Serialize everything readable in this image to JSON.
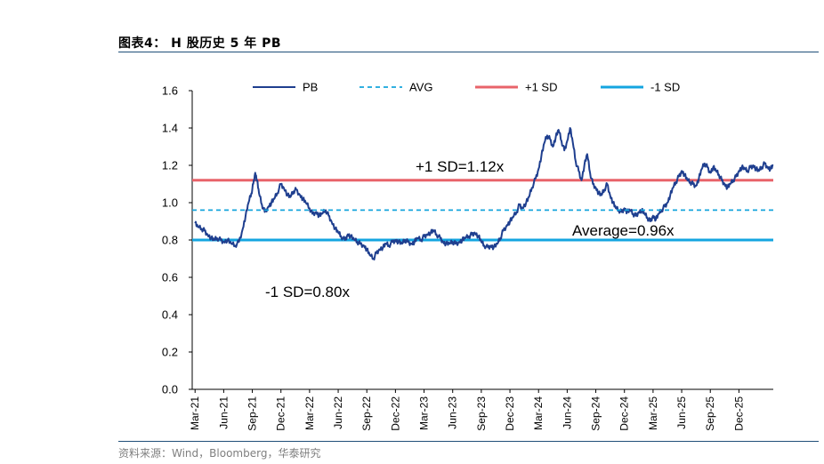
{
  "header": {
    "title": "图表4： H 股历史 5 年 PB"
  },
  "footer": {
    "source": "资料来源：Wind，Bloomberg，华泰研究"
  },
  "chart_data": {
    "type": "line",
    "ylim": [
      0,
      1.6
    ],
    "yticks": [
      "0.0",
      "0.2",
      "0.4",
      "0.6",
      "0.8",
      "1.0",
      "1.2",
      "1.4",
      "1.6"
    ],
    "xticks": [
      "Mar-21",
      "Jun-21",
      "Sep-21",
      "Dec-21",
      "Mar-22",
      "Jun-22",
      "Sep-22",
      "Dec-22",
      "Mar-23",
      "Jun-23",
      "Sep-23",
      "Dec-23",
      "Mar-24",
      "Jun-24",
      "Sep-24",
      "Dec-24",
      "Mar-25",
      "Jun-25",
      "Sep-25",
      "Dec-25"
    ],
    "xtick_months": [
      0,
      3,
      6,
      9,
      12,
      15,
      18,
      21,
      24,
      27,
      30,
      33,
      36,
      39,
      42,
      45,
      48,
      51,
      54,
      57
    ],
    "x_span_months": [
      -0.3,
      60.6
    ],
    "legend": [
      {
        "label": "PB",
        "color": "#1f3f8f",
        "style": "solid"
      },
      {
        "label": "AVG",
        "color": "#16a5dc",
        "style": "dashed"
      },
      {
        "label": "+1 SD",
        "color": "#e8636a",
        "style": "solid"
      },
      {
        "label": "-1 SD",
        "color": "#14a5e0",
        "style": "solid"
      }
    ],
    "reference_lines": {
      "avg": 0.96,
      "plus_1sd": 1.12,
      "minus_1sd": 0.8
    },
    "annotations": {
      "plus_1sd": "+1 SD=1.12x",
      "avg": "Average=0.96x",
      "minus_1sd": "-1 SD=0.80x"
    },
    "series": [
      {
        "name": "PB",
        "color": "#1f3f8f",
        "points": [
          [
            0.0,
            0.89
          ],
          [
            0.3,
            0.87
          ],
          [
            0.7,
            0.86
          ],
          [
            1.0,
            0.85
          ],
          [
            1.3,
            0.83
          ],
          [
            1.7,
            0.81
          ],
          [
            2.0,
            0.8
          ],
          [
            2.3,
            0.81
          ],
          [
            2.7,
            0.8
          ],
          [
            3.0,
            0.79
          ],
          [
            3.4,
            0.8
          ],
          [
            3.8,
            0.78
          ],
          [
            4.2,
            0.77
          ],
          [
            4.6,
            0.79
          ],
          [
            5.0,
            0.86
          ],
          [
            5.3,
            0.93
          ],
          [
            5.6,
            1.0
          ],
          [
            5.9,
            1.05
          ],
          [
            6.1,
            1.1
          ],
          [
            6.3,
            1.16
          ],
          [
            6.5,
            1.12
          ],
          [
            6.7,
            1.05
          ],
          [
            7.0,
            0.99
          ],
          [
            7.3,
            0.95
          ],
          [
            7.7,
            0.98
          ],
          [
            8.0,
            1.0
          ],
          [
            8.3,
            1.02
          ],
          [
            8.6,
            1.05
          ],
          [
            9.0,
            1.1
          ],
          [
            9.3,
            1.08
          ],
          [
            9.7,
            1.04
          ],
          [
            10.0,
            1.03
          ],
          [
            10.3,
            1.06
          ],
          [
            10.6,
            1.07
          ],
          [
            11.0,
            1.04
          ],
          [
            11.3,
            1.02
          ],
          [
            11.6,
            1.0
          ],
          [
            12.0,
            0.97
          ],
          [
            12.3,
            0.94
          ],
          [
            12.7,
            0.95
          ],
          [
            13.0,
            0.93
          ],
          [
            13.3,
            0.94
          ],
          [
            13.7,
            0.96
          ],
          [
            14.0,
            0.93
          ],
          [
            14.3,
            0.9
          ],
          [
            14.7,
            0.86
          ],
          [
            15.0,
            0.84
          ],
          [
            15.3,
            0.82
          ],
          [
            15.7,
            0.8
          ],
          [
            16.0,
            0.83
          ],
          [
            16.3,
            0.82
          ],
          [
            16.7,
            0.8
          ],
          [
            17.0,
            0.79
          ],
          [
            17.3,
            0.78
          ],
          [
            17.7,
            0.77
          ],
          [
            18.0,
            0.75
          ],
          [
            18.3,
            0.72
          ],
          [
            18.7,
            0.7
          ],
          [
            19.0,
            0.73
          ],
          [
            19.3,
            0.75
          ],
          [
            19.7,
            0.76
          ],
          [
            20.0,
            0.78
          ],
          [
            20.3,
            0.77
          ],
          [
            20.7,
            0.79
          ],
          [
            21.0,
            0.8
          ],
          [
            21.3,
            0.79
          ],
          [
            21.7,
            0.78
          ],
          [
            22.0,
            0.8
          ],
          [
            22.3,
            0.79
          ],
          [
            22.7,
            0.78
          ],
          [
            23.0,
            0.79
          ],
          [
            23.3,
            0.81
          ],
          [
            23.7,
            0.8
          ],
          [
            24.0,
            0.82
          ],
          [
            24.3,
            0.83
          ],
          [
            24.7,
            0.84
          ],
          [
            25.0,
            0.85
          ],
          [
            25.3,
            0.83
          ],
          [
            25.7,
            0.81
          ],
          [
            26.0,
            0.79
          ],
          [
            26.3,
            0.78
          ],
          [
            26.7,
            0.78
          ],
          [
            27.0,
            0.79
          ],
          [
            27.3,
            0.78
          ],
          [
            27.7,
            0.79
          ],
          [
            28.0,
            0.8
          ],
          [
            28.3,
            0.81
          ],
          [
            28.7,
            0.82
          ],
          [
            29.0,
            0.83
          ],
          [
            29.3,
            0.84
          ],
          [
            29.7,
            0.82
          ],
          [
            30.0,
            0.79
          ],
          [
            30.3,
            0.77
          ],
          [
            30.7,
            0.76
          ],
          [
            31.0,
            0.77
          ],
          [
            31.3,
            0.76
          ],
          [
            31.7,
            0.78
          ],
          [
            32.0,
            0.81
          ],
          [
            32.3,
            0.85
          ],
          [
            32.7,
            0.88
          ],
          [
            33.0,
            0.9
          ],
          [
            33.3,
            0.92
          ],
          [
            33.7,
            0.95
          ],
          [
            34.0,
            0.99
          ],
          [
            34.3,
            0.97
          ],
          [
            34.7,
            1.0
          ],
          [
            35.0,
            1.03
          ],
          [
            35.3,
            1.08
          ],
          [
            35.7,
            1.13
          ],
          [
            36.0,
            1.18
          ],
          [
            36.3,
            1.25
          ],
          [
            36.6,
            1.32
          ],
          [
            36.9,
            1.36
          ],
          [
            37.2,
            1.34
          ],
          [
            37.5,
            1.3
          ],
          [
            37.8,
            1.35
          ],
          [
            38.1,
            1.39
          ],
          [
            38.4,
            1.33
          ],
          [
            38.7,
            1.28
          ],
          [
            39.0,
            1.33
          ],
          [
            39.3,
            1.4
          ],
          [
            39.6,
            1.32
          ],
          [
            39.9,
            1.22
          ],
          [
            40.2,
            1.17
          ],
          [
            40.5,
            1.12
          ],
          [
            40.8,
            1.2
          ],
          [
            41.1,
            1.26
          ],
          [
            41.4,
            1.16
          ],
          [
            41.7,
            1.1
          ],
          [
            42.0,
            1.08
          ],
          [
            42.3,
            1.05
          ],
          [
            42.6,
            1.04
          ],
          [
            42.9,
            1.07
          ],
          [
            43.2,
            1.1
          ],
          [
            43.5,
            1.04
          ],
          [
            43.8,
            1.0
          ],
          [
            44.1,
            0.97
          ],
          [
            44.4,
            0.96
          ],
          [
            44.7,
            0.95
          ],
          [
            45.0,
            0.97
          ],
          [
            45.3,
            0.95
          ],
          [
            45.6,
            0.96
          ],
          [
            45.9,
            0.94
          ],
          [
            46.2,
            0.93
          ],
          [
            46.5,
            0.95
          ],
          [
            46.8,
            0.96
          ],
          [
            47.1,
            0.94
          ],
          [
            47.4,
            0.92
          ],
          [
            47.7,
            0.9
          ],
          [
            48.0,
            0.93
          ],
          [
            48.3,
            0.91
          ],
          [
            48.6,
            0.94
          ],
          [
            48.9,
            0.96
          ],
          [
            49.2,
            0.98
          ],
          [
            49.5,
            1.0
          ],
          [
            49.8,
            1.04
          ],
          [
            50.1,
            1.08
          ],
          [
            50.4,
            1.11
          ],
          [
            50.7,
            1.14
          ],
          [
            51.0,
            1.17
          ],
          [
            51.3,
            1.15
          ],
          [
            51.6,
            1.12
          ],
          [
            51.9,
            1.11
          ],
          [
            52.2,
            1.1
          ],
          [
            52.5,
            1.09
          ],
          [
            52.8,
            1.13
          ],
          [
            53.1,
            1.18
          ],
          [
            53.4,
            1.21
          ],
          [
            53.7,
            1.19
          ],
          [
            54.0,
            1.16
          ],
          [
            54.3,
            1.19
          ],
          [
            54.6,
            1.17
          ],
          [
            54.9,
            1.15
          ],
          [
            55.2,
            1.12
          ],
          [
            55.5,
            1.1
          ],
          [
            55.8,
            1.08
          ],
          [
            56.1,
            1.1
          ],
          [
            56.4,
            1.12
          ],
          [
            56.7,
            1.14
          ],
          [
            57.0,
            1.17
          ],
          [
            57.3,
            1.19
          ],
          [
            57.6,
            1.18
          ],
          [
            57.9,
            1.17
          ],
          [
            58.2,
            1.19
          ],
          [
            58.5,
            1.2
          ],
          [
            58.8,
            1.18
          ],
          [
            59.1,
            1.17
          ],
          [
            59.4,
            1.19
          ],
          [
            59.7,
            1.21
          ],
          [
            60.0,
            1.19
          ],
          [
            60.3,
            1.18
          ],
          [
            60.6,
            1.2
          ]
        ]
      }
    ]
  }
}
